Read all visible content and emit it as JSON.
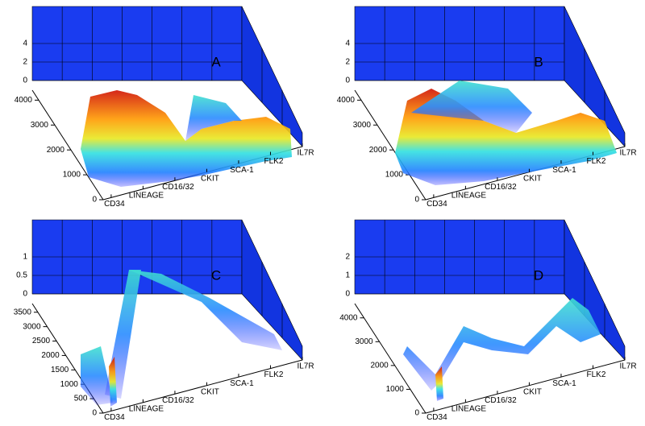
{
  "chart_data": [
    {
      "type": "surface",
      "label": "A",
      "categories": [
        "CD34",
        "LINEAGE",
        "CD16/32",
        "CKIT",
        "SCA-1",
        "FLK2",
        "IL7R"
      ],
      "ylim": [
        0,
        4400
      ],
      "yticks": [
        0,
        1000,
        2000,
        3000,
        4000
      ],
      "zlim": [
        0,
        8
      ],
      "zticks": [
        0,
        2,
        4
      ]
    },
    {
      "type": "surface",
      "label": "B",
      "categories": [
        "CD34",
        "LINEAGE",
        "CD16/32",
        "CKIT",
        "SCA-1",
        "FLK2",
        "IL7R"
      ],
      "ylim": [
        0,
        4400
      ],
      "yticks": [
        0,
        1000,
        2000,
        3000,
        4000
      ],
      "zlim": [
        0,
        8
      ],
      "zticks": [
        0,
        2,
        4
      ]
    },
    {
      "type": "surface",
      "label": "C",
      "categories": [
        "CD34",
        "LINEAGE",
        "CD16/32",
        "CKIT",
        "SCA-1",
        "FLK2",
        "IL7R"
      ],
      "ylim": [
        0,
        3800
      ],
      "yticks": [
        0,
        500,
        1000,
        1500,
        2000,
        2500,
        3000,
        3500
      ],
      "zlim": [
        0,
        2
      ],
      "zticks": [
        0,
        0.5,
        1
      ]
    },
    {
      "type": "surface",
      "label": "D",
      "categories": [
        "CD34",
        "LINEAGE",
        "CD16/32",
        "CKIT",
        "SCA-1",
        "FLK2",
        "IL7R"
      ],
      "ylim": [
        0,
        4600
      ],
      "yticks": [
        0,
        1000,
        2000,
        3000,
        4000
      ],
      "zlim": [
        0,
        4
      ],
      "zticks": [
        0,
        1,
        2
      ]
    }
  ]
}
